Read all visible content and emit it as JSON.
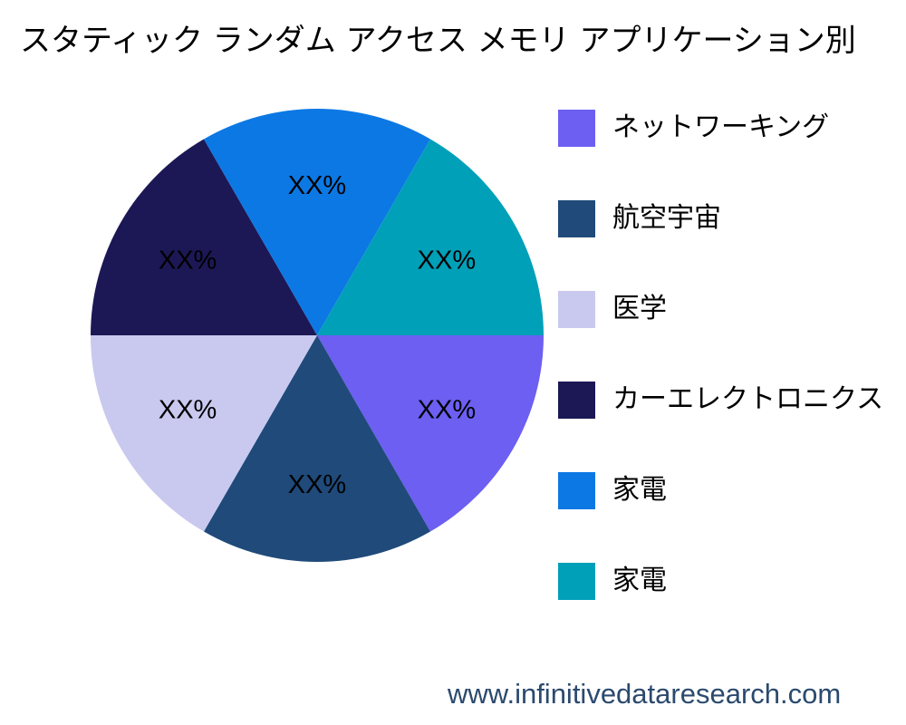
{
  "chart_data": {
    "type": "pie",
    "title": "スタティック ランダム アクセス メモリ アプリケーション別",
    "slice_label_text": "XX%",
    "slices": [
      {
        "name": "ネットワーキング",
        "value": 16.67,
        "label": "XX%",
        "color": "#6c5ff2"
      },
      {
        "name": "航空宇宙",
        "value": 16.67,
        "label": "XX%",
        "color": "#1f4a7a"
      },
      {
        "name": "医学",
        "value": 16.67,
        "label": "XX%",
        "color": "#c9c9ef"
      },
      {
        "name": "カーエレクトロニクス",
        "value": 16.67,
        "label": "XX%",
        "color": "#1c1855"
      },
      {
        "name": "家電",
        "value": 16.67,
        "label": "XX%",
        "color": "#0c78e4"
      },
      {
        "name": "家電",
        "value": 16.67,
        "label": "XX%",
        "color": "#00a0b8"
      }
    ],
    "legend_position": "right"
  },
  "watermark": "www.infinitivedataresearch.com"
}
